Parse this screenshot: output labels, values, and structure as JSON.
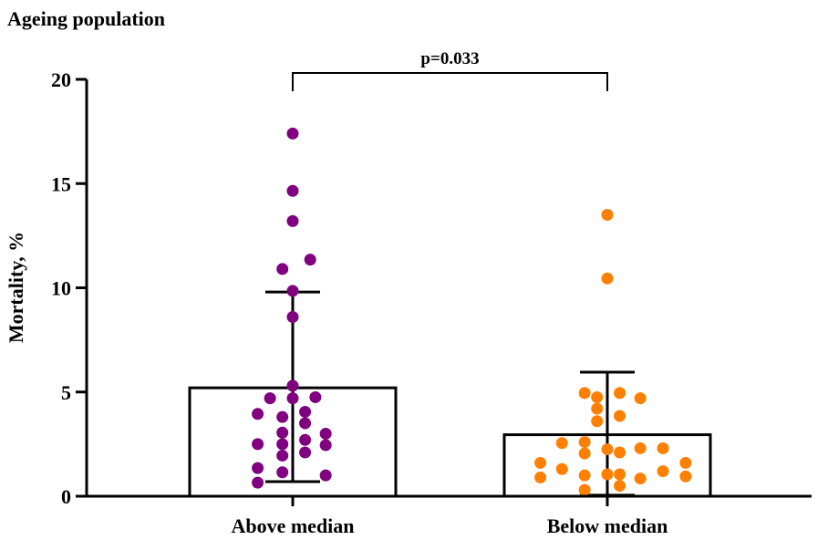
{
  "chart_data": {
    "type": "bar",
    "title": "Ageing population",
    "xlabel": "",
    "ylabel": "Mortality, %",
    "ylim": [
      0,
      20
    ],
    "yticks": [
      0,
      5,
      10,
      15,
      20
    ],
    "categories": [
      "Above median",
      "Below median"
    ],
    "means": [
      5.2,
      2.95
    ],
    "error_bars": [
      {
        "lower": 0.7,
        "upper": 9.8
      },
      {
        "lower": 0.05,
        "upper": 5.95
      }
    ],
    "annotation": "p=0.033",
    "colors": {
      "Above median": "#800080",
      "Below median": "#ff8000",
      "bar_fill": "#ffffff",
      "axis": "#000000"
    },
    "series": [
      {
        "name": "Above median",
        "points": [
          {
            "x": 0.0,
            "y": 17.4
          },
          {
            "x": 0.0,
            "y": 14.65
          },
          {
            "x": 0.0,
            "y": 13.2
          },
          {
            "x": 0.17,
            "y": 11.35
          },
          {
            "x": -0.1,
            "y": 10.9
          },
          {
            "x": 0.0,
            "y": 9.85
          },
          {
            "x": 0.0,
            "y": 8.6
          },
          {
            "x": 0.0,
            "y": 5.3
          },
          {
            "x": -0.22,
            "y": 4.7
          },
          {
            "x": 0.0,
            "y": 4.7
          },
          {
            "x": 0.22,
            "y": 4.75
          },
          {
            "x": -0.34,
            "y": 3.95
          },
          {
            "x": 0.12,
            "y": 4.05
          },
          {
            "x": -0.1,
            "y": 3.8
          },
          {
            "x": 0.12,
            "y": 3.5
          },
          {
            "x": -0.1,
            "y": 3.05
          },
          {
            "x": 0.32,
            "y": 3.0
          },
          {
            "x": 0.12,
            "y": 2.7
          },
          {
            "x": -0.34,
            "y": 2.5
          },
          {
            "x": -0.1,
            "y": 2.5
          },
          {
            "x": 0.32,
            "y": 2.45
          },
          {
            "x": 0.12,
            "y": 2.1
          },
          {
            "x": -0.1,
            "y": 1.95
          },
          {
            "x": -0.34,
            "y": 1.35
          },
          {
            "x": -0.1,
            "y": 1.15
          },
          {
            "x": 0.32,
            "y": 1.0
          },
          {
            "x": -0.34,
            "y": 0.65
          }
        ]
      },
      {
        "name": "Below median",
        "points": [
          {
            "x": 0.0,
            "y": 13.5
          },
          {
            "x": 0.0,
            "y": 10.45
          },
          {
            "x": -0.22,
            "y": 4.95
          },
          {
            "x": 0.12,
            "y": 4.95
          },
          {
            "x": -0.1,
            "y": 4.75
          },
          {
            "x": 0.32,
            "y": 4.7
          },
          {
            "x": -0.1,
            "y": 4.2
          },
          {
            "x": 0.12,
            "y": 3.85
          },
          {
            "x": -0.1,
            "y": 3.6
          },
          {
            "x": -0.44,
            "y": 2.55
          },
          {
            "x": -0.22,
            "y": 2.6
          },
          {
            "x": 0.0,
            "y": 2.25
          },
          {
            "x": 0.32,
            "y": 2.3
          },
          {
            "x": 0.54,
            "y": 2.3
          },
          {
            "x": -0.22,
            "y": 2.05
          },
          {
            "x": 0.12,
            "y": 2.1
          },
          {
            "x": -0.65,
            "y": 1.6
          },
          {
            "x": 0.76,
            "y": 1.6
          },
          {
            "x": -0.44,
            "y": 1.3
          },
          {
            "x": 0.54,
            "y": 1.2
          },
          {
            "x": -0.22,
            "y": 1.0
          },
          {
            "x": 0.0,
            "y": 1.05
          },
          {
            "x": 0.12,
            "y": 1.05
          },
          {
            "x": 0.76,
            "y": 0.95
          },
          {
            "x": -0.65,
            "y": 0.9
          },
          {
            "x": 0.32,
            "y": 0.85
          },
          {
            "x": 0.12,
            "y": 0.5
          },
          {
            "x": -0.22,
            "y": 0.3
          }
        ]
      }
    ]
  }
}
